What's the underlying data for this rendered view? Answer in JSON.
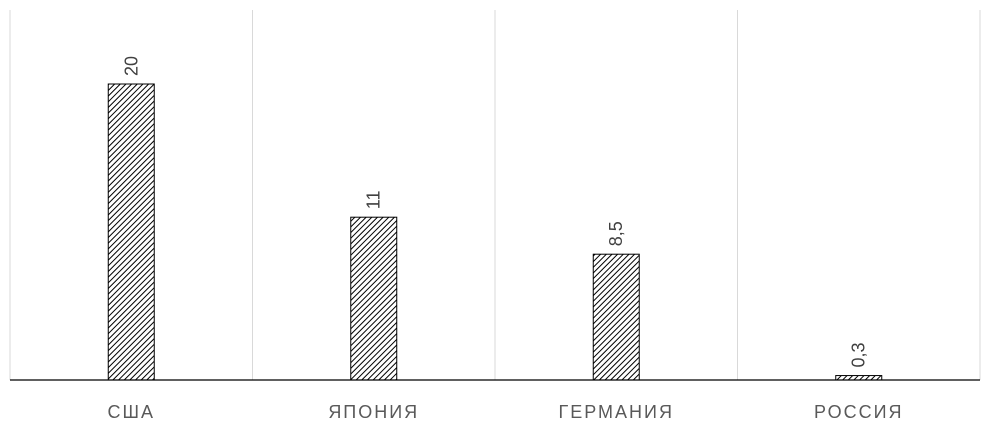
{
  "chart_data": {
    "type": "bar",
    "categories": [
      "США",
      "ЯПОНИЯ",
      "ГЕРМАНИЯ",
      "РОССИЯ"
    ],
    "values": [
      20,
      11,
      8.5,
      0.3
    ],
    "data_labels": [
      "20",
      "11",
      "8,5",
      "0,3"
    ],
    "title": "",
    "xlabel": "",
    "ylabel": "",
    "ylim": [
      0,
      25
    ],
    "grid": "vertical-category-separators",
    "legend": "none",
    "bar_fill": "diagonal-hatch",
    "colors": {
      "bar_stroke": "#000000",
      "hatch": "#000000",
      "grid": "#d9d9d9",
      "label_text": "#595959"
    }
  }
}
